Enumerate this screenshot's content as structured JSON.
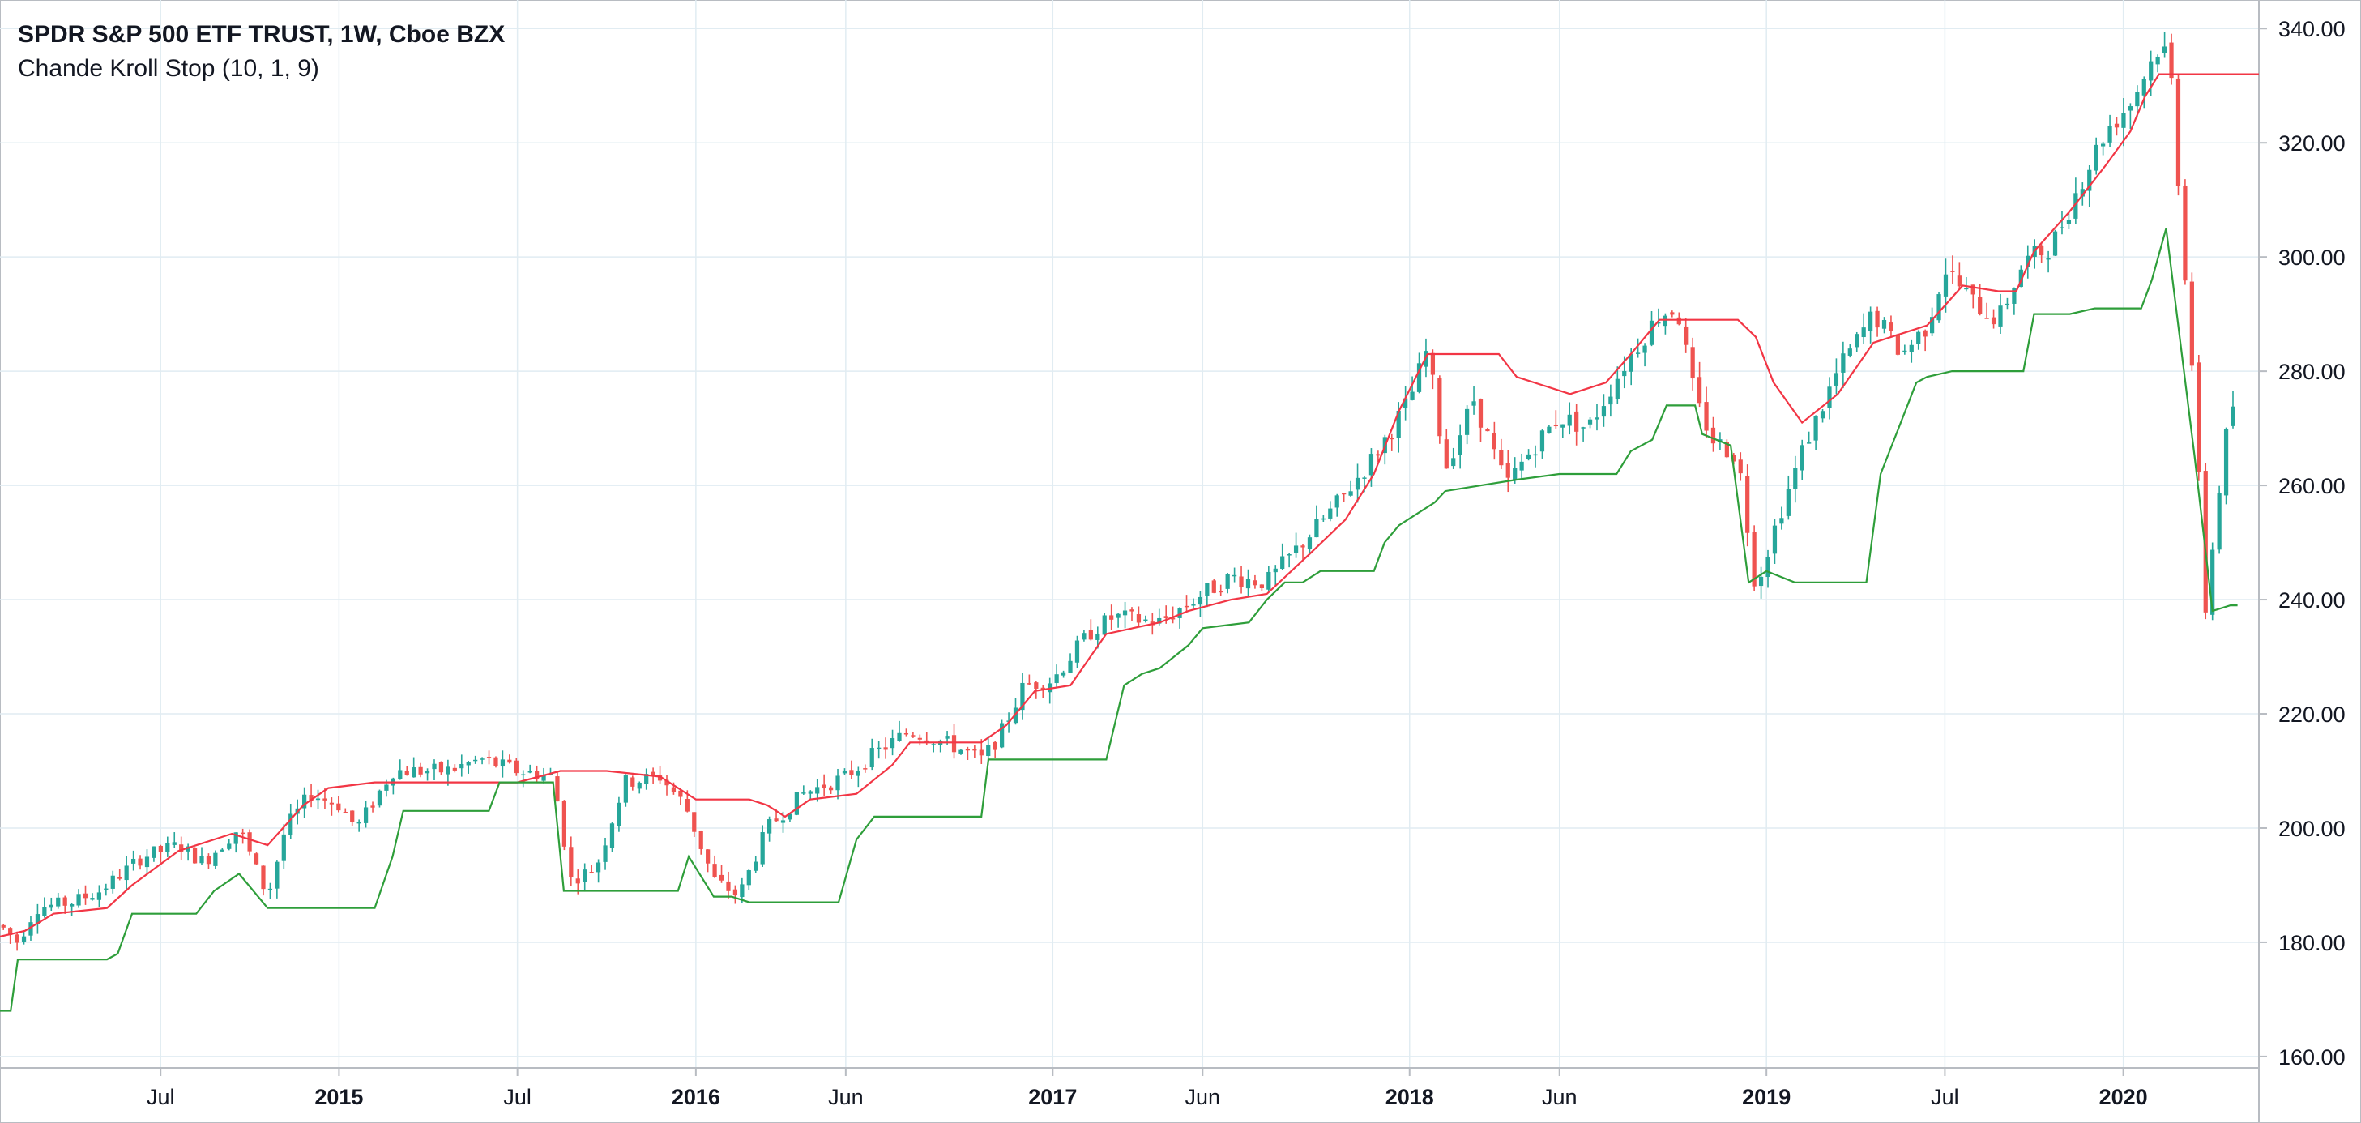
{
  "legend": {
    "symbol": "SPDR S&P 500 ETF TRUST, 1W, Cboe BZX",
    "study": "Chande Kroll Stop (10, 1, 9)"
  },
  "colors": {
    "up": "#26a69a",
    "down": "#ef5350",
    "stop_short": "#f23645",
    "stop_long": "#2e9e3a",
    "grid": "#e1ecf2",
    "axis_text": "#131722",
    "border": "#b8bcc2"
  },
  "chart_data": {
    "type": "candlestick",
    "title": "SPDR S&P 500 ETF TRUST, 1W, Cboe BZX",
    "indicator": "Chande Kroll Stop (10, 1, 9)",
    "x_range": [
      2014.05,
      2020.38
    ],
    "ylim": [
      158,
      345
    ],
    "y_ticks": [
      160,
      180,
      200,
      220,
      240,
      260,
      280,
      300,
      320,
      340
    ],
    "y_tick_labels": [
      "160.00",
      "180.00",
      "200.00",
      "220.00",
      "240.00",
      "260.00",
      "280.00",
      "300.00",
      "320.00",
      "340.00"
    ],
    "x_ticks": [
      {
        "label": "Jul",
        "x": 2014.5,
        "year": false
      },
      {
        "label": "2015",
        "x": 2015.0,
        "year": true
      },
      {
        "label": "Jul",
        "x": 2015.5,
        "year": false
      },
      {
        "label": "2016",
        "x": 2016.0,
        "year": true
      },
      {
        "label": "Jun",
        "x": 2016.42,
        "year": false
      },
      {
        "label": "2017",
        "x": 2017.0,
        "year": true
      },
      {
        "label": "Jun",
        "x": 2017.42,
        "year": false
      },
      {
        "label": "2018",
        "x": 2018.0,
        "year": true
      },
      {
        "label": "Jun",
        "x": 2018.42,
        "year": false
      },
      {
        "label": "2019",
        "x": 2019.0,
        "year": true
      },
      {
        "label": "Jul",
        "x": 2019.5,
        "year": false
      },
      {
        "label": "2020",
        "x": 2020.0,
        "year": true
      }
    ],
    "price_anchors": [
      [
        2014.05,
        183
      ],
      [
        2014.1,
        180
      ],
      [
        2014.15,
        186
      ],
      [
        2014.25,
        187
      ],
      [
        2014.33,
        189
      ],
      [
        2014.45,
        195
      ],
      [
        2014.55,
        197
      ],
      [
        2014.62,
        194
      ],
      [
        2014.72,
        200
      ],
      [
        2014.8,
        188
      ],
      [
        2014.85,
        200
      ],
      [
        2014.92,
        206
      ],
      [
        2015.0,
        204
      ],
      [
        2015.05,
        200
      ],
      [
        2015.15,
        210
      ],
      [
        2015.3,
        210
      ],
      [
        2015.4,
        212
      ],
      [
        2015.5,
        210
      ],
      [
        2015.6,
        209
      ],
      [
        2015.65,
        191
      ],
      [
        2015.72,
        193
      ],
      [
        2015.8,
        208
      ],
      [
        2015.9,
        209
      ],
      [
        2015.97,
        204
      ],
      [
        2016.05,
        191
      ],
      [
        2016.12,
        188
      ],
      [
        2016.2,
        200
      ],
      [
        2016.3,
        206
      ],
      [
        2016.42,
        209
      ],
      [
        2016.5,
        213
      ],
      [
        2016.6,
        217
      ],
      [
        2016.7,
        215
      ],
      [
        2016.8,
        212
      ],
      [
        2016.85,
        216
      ],
      [
        2016.92,
        225
      ],
      [
        2017.0,
        226
      ],
      [
        2017.1,
        234
      ],
      [
        2017.17,
        237
      ],
      [
        2017.3,
        236
      ],
      [
        2017.42,
        241
      ],
      [
        2017.5,
        244
      ],
      [
        2017.6,
        243
      ],
      [
        2017.7,
        250
      ],
      [
        2017.8,
        257
      ],
      [
        2017.9,
        265
      ],
      [
        2018.0,
        275
      ],
      [
        2018.05,
        284
      ],
      [
        2018.1,
        263
      ],
      [
        2018.18,
        275
      ],
      [
        2018.27,
        260
      ],
      [
        2018.35,
        267
      ],
      [
        2018.42,
        272
      ],
      [
        2018.5,
        270
      ],
      [
        2018.6,
        281
      ],
      [
        2018.7,
        290
      ],
      [
        2018.75,
        291
      ],
      [
        2018.8,
        275
      ],
      [
        2018.85,
        268
      ],
      [
        2018.92,
        265
      ],
      [
        2018.97,
        242
      ],
      [
        2019.02,
        252
      ],
      [
        2019.1,
        266
      ],
      [
        2019.2,
        280
      ],
      [
        2019.3,
        290
      ],
      [
        2019.38,
        283
      ],
      [
        2019.45,
        288
      ],
      [
        2019.5,
        298
      ],
      [
        2019.58,
        292
      ],
      [
        2019.65,
        289
      ],
      [
        2019.72,
        299
      ],
      [
        2019.8,
        302
      ],
      [
        2019.88,
        313
      ],
      [
        2019.95,
        322
      ],
      [
        2020.02,
        327
      ],
      [
        2020.1,
        337
      ],
      [
        2020.13,
        335
      ],
      [
        2020.17,
        300
      ],
      [
        2020.2,
        275
      ],
      [
        2020.23,
        238
      ],
      [
        2020.27,
        260
      ],
      [
        2020.3,
        274
      ]
    ],
    "series": [
      {
        "name": "Stop Short",
        "points": [
          [
            2014.05,
            181
          ],
          [
            2014.12,
            182
          ],
          [
            2014.2,
            185
          ],
          [
            2014.35,
            186
          ],
          [
            2014.42,
            190
          ],
          [
            2014.55,
            196
          ],
          [
            2014.7,
            199
          ],
          [
            2014.8,
            197
          ],
          [
            2014.9,
            204
          ],
          [
            2014.97,
            207
          ],
          [
            2015.1,
            208
          ],
          [
            2015.5,
            208
          ],
          [
            2015.62,
            210
          ],
          [
            2015.75,
            210
          ],
          [
            2015.9,
            209
          ],
          [
            2016.0,
            205
          ],
          [
            2016.15,
            205
          ],
          [
            2016.2,
            204
          ],
          [
            2016.25,
            202
          ],
          [
            2016.32,
            205
          ],
          [
            2016.45,
            206
          ],
          [
            2016.55,
            211
          ],
          [
            2016.6,
            215
          ],
          [
            2016.8,
            215
          ],
          [
            2016.87,
            218
          ],
          [
            2016.95,
            224
          ],
          [
            2017.05,
            225
          ],
          [
            2017.15,
            234
          ],
          [
            2017.3,
            236
          ],
          [
            2017.38,
            238
          ],
          [
            2017.5,
            240
          ],
          [
            2017.6,
            241
          ],
          [
            2017.72,
            248
          ],
          [
            2017.82,
            254
          ],
          [
            2017.9,
            262
          ],
          [
            2017.97,
            273
          ],
          [
            2018.05,
            283
          ],
          [
            2018.25,
            283
          ],
          [
            2018.3,
            279
          ],
          [
            2018.45,
            276
          ],
          [
            2018.55,
            278
          ],
          [
            2018.62,
            283
          ],
          [
            2018.7,
            289
          ],
          [
            2018.92,
            289
          ],
          [
            2018.97,
            286
          ],
          [
            2019.02,
            278
          ],
          [
            2019.1,
            271
          ],
          [
            2019.2,
            276
          ],
          [
            2019.3,
            285
          ],
          [
            2019.35,
            286
          ],
          [
            2019.45,
            288
          ],
          [
            2019.55,
            295
          ],
          [
            2019.65,
            294
          ],
          [
            2019.7,
            294
          ],
          [
            2019.75,
            301
          ],
          [
            2019.85,
            308
          ],
          [
            2019.95,
            316
          ],
          [
            2020.02,
            322
          ],
          [
            2020.06,
            328
          ],
          [
            2020.1,
            332
          ],
          [
            2020.38,
            332
          ]
        ]
      },
      {
        "name": "Stop Long",
        "points": [
          [
            2014.05,
            168
          ],
          [
            2014.08,
            168
          ],
          [
            2014.1,
            177
          ],
          [
            2014.35,
            177
          ],
          [
            2014.38,
            178
          ],
          [
            2014.42,
            185
          ],
          [
            2014.6,
            185
          ],
          [
            2014.65,
            189
          ],
          [
            2014.72,
            192
          ],
          [
            2014.8,
            186
          ],
          [
            2015.1,
            186
          ],
          [
            2015.15,
            195
          ],
          [
            2015.18,
            203
          ],
          [
            2015.42,
            203
          ],
          [
            2015.45,
            208
          ],
          [
            2015.6,
            208
          ],
          [
            2015.63,
            189
          ],
          [
            2015.95,
            189
          ],
          [
            2015.98,
            195
          ],
          [
            2016.05,
            188
          ],
          [
            2016.1,
            188
          ],
          [
            2016.15,
            187
          ],
          [
            2016.4,
            187
          ],
          [
            2016.45,
            198
          ],
          [
            2016.5,
            202
          ],
          [
            2016.8,
            202
          ],
          [
            2016.82,
            212
          ],
          [
            2017.15,
            212
          ],
          [
            2017.2,
            225
          ],
          [
            2017.25,
            227
          ],
          [
            2017.3,
            228
          ],
          [
            2017.38,
            232
          ],
          [
            2017.42,
            235
          ],
          [
            2017.55,
            236
          ],
          [
            2017.6,
            240
          ],
          [
            2017.65,
            243
          ],
          [
            2017.7,
            243
          ],
          [
            2017.75,
            245
          ],
          [
            2017.9,
            245
          ],
          [
            2017.93,
            250
          ],
          [
            2017.97,
            253
          ],
          [
            2018.07,
            257
          ],
          [
            2018.1,
            259
          ],
          [
            2018.2,
            260
          ],
          [
            2018.3,
            261
          ],
          [
            2018.42,
            262
          ],
          [
            2018.58,
            262
          ],
          [
            2018.62,
            266
          ],
          [
            2018.68,
            268
          ],
          [
            2018.72,
            274
          ],
          [
            2018.8,
            274
          ],
          [
            2018.82,
            269
          ],
          [
            2018.9,
            267
          ],
          [
            2018.95,
            243
          ],
          [
            2019.0,
            245
          ],
          [
            2019.08,
            243
          ],
          [
            2019.28,
            243
          ],
          [
            2019.32,
            262
          ],
          [
            2019.37,
            270
          ],
          [
            2019.42,
            278
          ],
          [
            2019.45,
            279
          ],
          [
            2019.52,
            280
          ],
          [
            2019.72,
            280
          ],
          [
            2019.75,
            290
          ],
          [
            2019.85,
            290
          ],
          [
            2019.92,
            291
          ],
          [
            2020.05,
            291
          ],
          [
            2020.08,
            296
          ],
          [
            2020.12,
            305
          ],
          [
            2020.15,
            290
          ],
          [
            2020.2,
            265
          ],
          [
            2020.25,
            238
          ],
          [
            2020.3,
            239
          ],
          [
            2020.32,
            239
          ]
        ]
      }
    ]
  }
}
